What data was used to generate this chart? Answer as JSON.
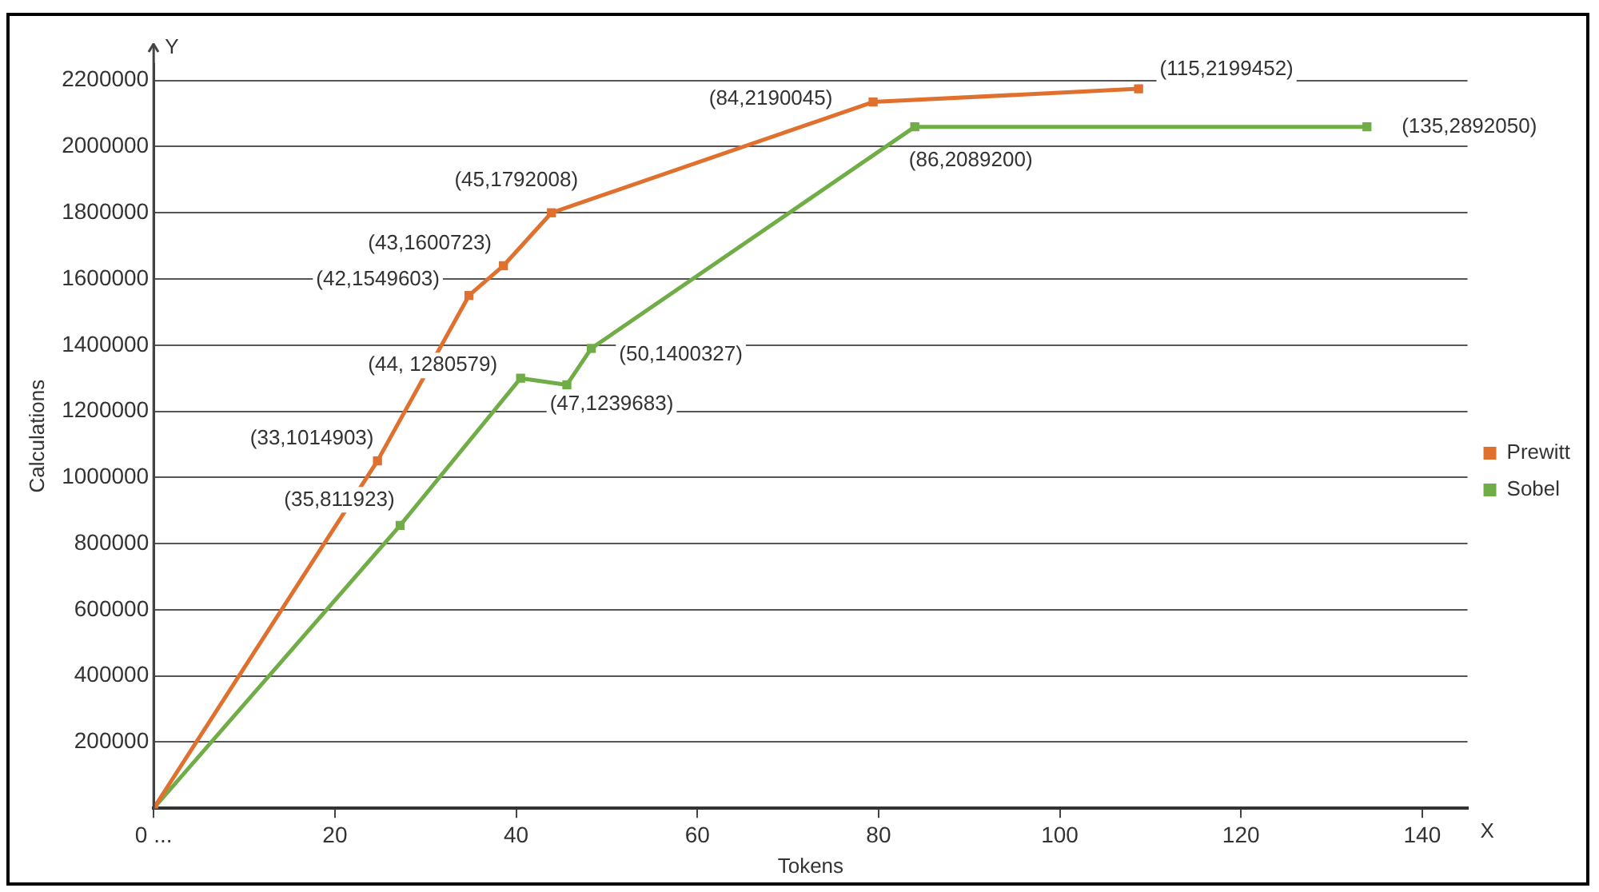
{
  "chart_data": {
    "type": "line",
    "xlabel": "Tokens",
    "ylabel": "Calculations",
    "xlim": [
      0,
      145
    ],
    "xticks": [
      {
        "value": 0,
        "label": "0 ..."
      },
      20,
      40,
      60,
      80,
      100,
      120,
      140
    ],
    "ylim": [
      0,
      2250000
    ],
    "yticks": [
      200000,
      400000,
      600000,
      800000,
      1000000,
      1200000,
      1400000,
      1600000,
      1800000,
      2000000,
      2200000
    ],
    "grid": "y",
    "legend": "right",
    "marker": "square",
    "line_style": "solid",
    "series": [
      {
        "name": "Prewitt",
        "color": "#e0702e",
        "x": [
          0,
          24.7,
          34.8,
          38.6,
          43.9,
          79.4,
          108.7
        ],
        "values": [
          0,
          1050000,
          1550000,
          1640000,
          1800000,
          2135000,
          2175000
        ]
      },
      {
        "name": "Sobel",
        "color": "#70ad47",
        "x": [
          0,
          27.2,
          40.5,
          45.6,
          48.3,
          84,
          133.9
        ],
        "values": [
          0,
          855000,
          1300000,
          1280000,
          1390000,
          2060000,
          2060000
        ]
      }
    ],
    "annotations": [
      {
        "text": "(33,1014903)",
        "x": 24.7,
        "y": 1050000
      },
      {
        "text": "(42,1549603)",
        "x": 34.8,
        "y": 1550000
      },
      {
        "text": "(43,1600723)",
        "x": 38.6,
        "y": 1640000
      },
      {
        "text": "(45,1792008)",
        "x": 43.9,
        "y": 1800000
      },
      {
        "text": "(84,2190045)",
        "x": 79.4,
        "y": 2135000
      },
      {
        "text": "(115,2199452)",
        "x": 108.7,
        "y": 2175000
      },
      {
        "text": "(35,811923)",
        "x": 27.2,
        "y": 855000
      },
      {
        "text": "(44, 1280579)",
        "x": 40.5,
        "y": 1300000
      },
      {
        "text": "(47,1239683)",
        "x": 45.6,
        "y": 1280000
      },
      {
        "text": "(50,1400327)",
        "x": 48.3,
        "y": 1390000
      },
      {
        "text": "(86,2089200)",
        "x": 84,
        "y": 2060000
      },
      {
        "text": "(135,2892050)",
        "x": 133.9,
        "y": 2060000
      },
      "Y",
      "X"
    ]
  }
}
